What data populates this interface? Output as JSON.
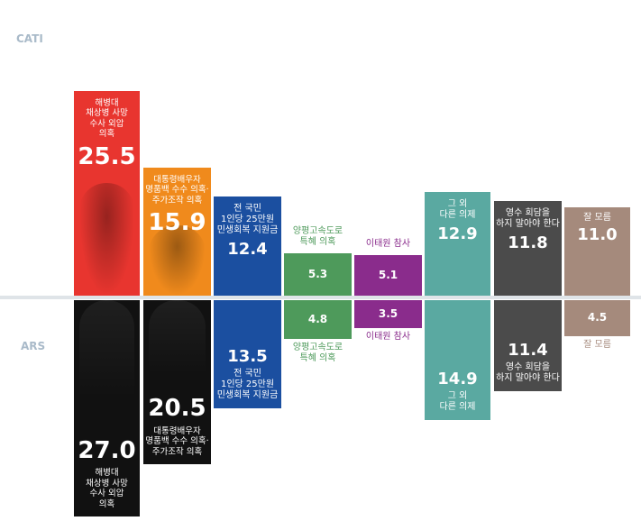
{
  "chart_data": {
    "type": "bar",
    "layout": "diverging-two-panels",
    "panels": [
      "CATI",
      "ARS"
    ],
    "categories": [
      "해병대\n채상병 사망\n수사 외압\n의혹",
      "대통령배우자\n명품백 수수 의혹·\n주가조작 의혹",
      "전 국민\n1인당 25만원\n민생회복 지원금",
      "양평고속도로\n특혜 의혹",
      "이태원 참사",
      "그 외\n다른 의제",
      "영수 회담을\n하지 말아야 한다",
      "잘 모름"
    ],
    "series": [
      {
        "name": "CATI",
        "values": [
          25.5,
          15.9,
          12.4,
          5.3,
          5.1,
          12.9,
          11.8,
          11.0
        ]
      },
      {
        "name": "ARS",
        "values": [
          27.0,
          20.5,
          13.5,
          4.8,
          3.5,
          14.9,
          11.4,
          4.5
        ]
      }
    ],
    "colors": {
      "cati": [
        "#e8352f",
        "#f08a1c",
        "#1b4fa0",
        "#4e9a5b",
        "#8a2c8c",
        "#5aa9a1",
        "#4b4b4b",
        "#a58a7c"
      ],
      "ars": [
        "#111111",
        "#111111",
        "#1b4fa0",
        "#4e9a5b",
        "#8a2c8c",
        "#5aa9a1",
        "#4b4b4b",
        "#a58a7c"
      ],
      "label_text": [
        "#ffffff",
        "#ffffff",
        "#ffffff",
        "#4e9a5b",
        "#8a2c8c",
        "#ffffff",
        "#ffffff",
        "#ffffff"
      ],
      "axis_tag": "#a9bac9",
      "baseline": "#dfe4e8"
    },
    "grid": false,
    "legend": "none"
  }
}
